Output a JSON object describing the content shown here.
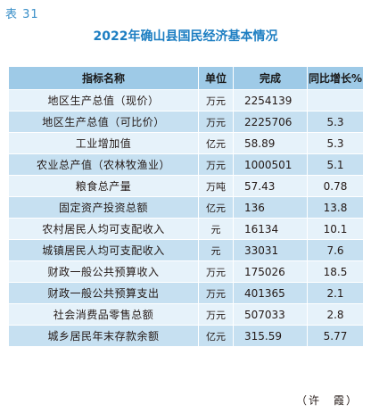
{
  "table_label": "表 31",
  "title": "2022年确山县国民经济基本情况",
  "headers": [
    "指标名称",
    "单位",
    "完成",
    "同比增长%"
  ],
  "rows": [
    {
      "name": "地区生产总值（现价）",
      "unit": "万元",
      "value": "2254139",
      "growth": ""
    },
    {
      "name": "地区生产总值（可比价）",
      "unit": "万元",
      "value": "2225706",
      "growth": "5.3"
    },
    {
      "name": "工业增加值",
      "unit": "亿元",
      "value": "58.89",
      "growth": "5.3"
    },
    {
      "name": "农业总产值（农林牧渔业）",
      "unit": "万元",
      "value": "1000501",
      "growth": "5.1"
    },
    {
      "name": "粮食总产量",
      "unit": "万吨",
      "value": "57.43",
      "growth": "0.78"
    },
    {
      "name": "固定资产投资总额",
      "unit": "亿元",
      "value": "136",
      "growth": "13.8"
    },
    {
      "name": "农村居民人均可支配收入",
      "unit": "元",
      "value": "16134",
      "growth": "10.1"
    },
    {
      "name": "城镇居民人均可支配收入",
      "unit": "元",
      "value": "33031",
      "growth": "7.6"
    },
    {
      "name": "财政一般公共预算收入",
      "unit": "万元",
      "value": "175026",
      "growth": "18.5"
    },
    {
      "name": "财政一般公共预算支出",
      "unit": "万元",
      "value": "401365",
      "growth": "2.1"
    },
    {
      "name": "社会消费品零售总额",
      "unit": "万元",
      "value": "507033",
      "growth": "2.8"
    },
    {
      "name": "城乡居民年末存款余额",
      "unit": "亿元",
      "value": "315.59",
      "growth": "5.77"
    }
  ],
  "author": "（许　霞）"
}
